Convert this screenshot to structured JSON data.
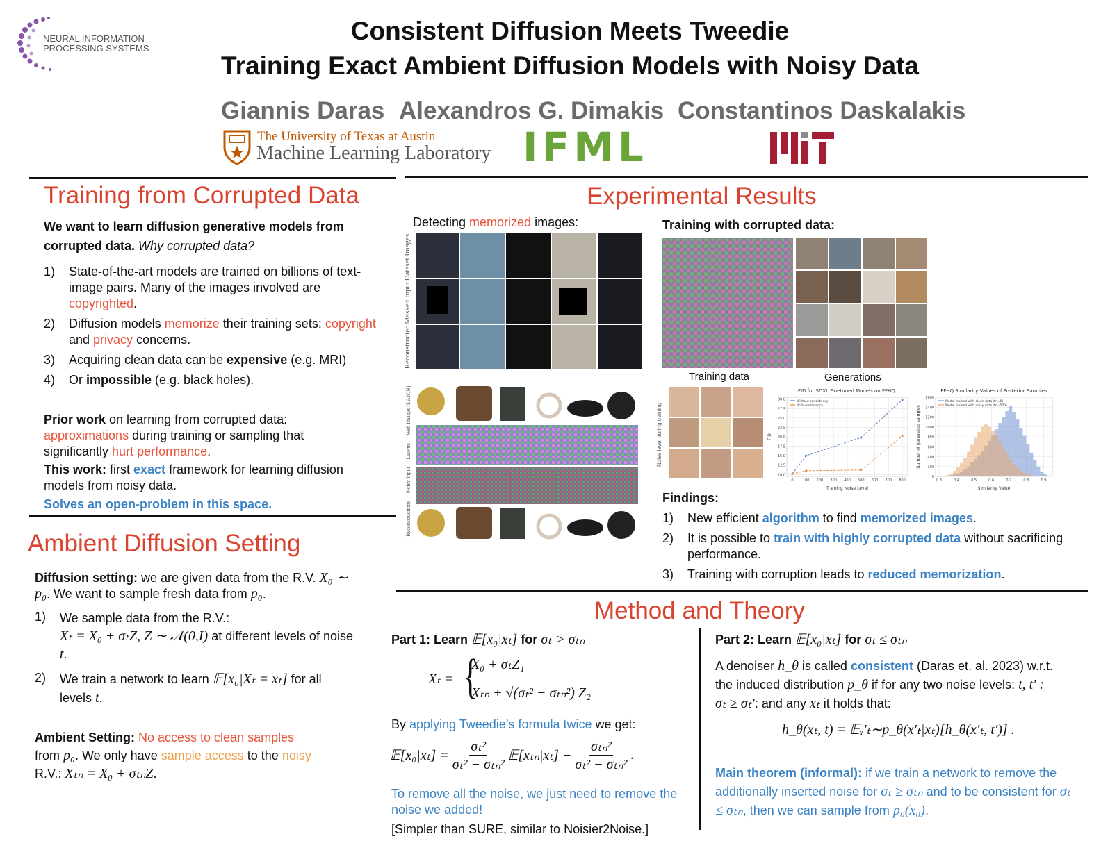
{
  "header": {
    "logo_text": [
      "NEURAL INFORMATION",
      "PROCESSING SYSTEMS"
    ],
    "title_line1": "Consistent Diffusion Meets Tweedie",
    "title_line2": "Training Exact Ambient Diffusion Models with Noisy Data",
    "authors": [
      "Giannis Daras",
      "Alexandros G. Dimakis",
      "Constantinos Daskalakis"
    ],
    "ut_line1": "The University of Texas at Austin",
    "ut_line2": "Machine Learning Laboratory",
    "ifml": "IFML"
  },
  "training": {
    "heading": "Training from Corrupted Data",
    "intro": [
      "We want to learn diffusion generative models from corrupted data.",
      " Why corrupted data?"
    ],
    "items": [
      {
        "num": "1)",
        "text": [
          "State-of-the-art models are trained on billions of text-image pairs. Many of the images involved are ",
          "copyrighted",
          "."
        ]
      },
      {
        "num": "2)",
        "text": [
          "Diffusion models ",
          "memorize",
          " their training sets: ",
          "copyright",
          " and ",
          "privacy",
          " concerns."
        ]
      },
      {
        "num": "3)",
        "text": [
          "Acquiring clean data can be ",
          "expensive",
          " (e.g. MRI)"
        ]
      },
      {
        "num": "4)",
        "text": [
          "Or ",
          "impossible",
          " (e.g. black holes)."
        ]
      }
    ],
    "prior": [
      "Prior work",
      " on learning from corrupted data: ",
      "approximations",
      " during training or sampling that significantly ",
      "hurt performance",
      "."
    ],
    "this_work": [
      "This work:",
      " first ",
      "exact",
      " framework for learning diffusion models from noisy data."
    ],
    "solves": "Solves an open-problem in this space."
  },
  "ambient": {
    "heading": "Ambient Diffusion Setting",
    "setting": [
      "Diffusion setting:",
      " we are given data from the R.V. ",
      "X₀ ∼ p₀",
      ". We want to sample fresh data from ",
      "p₀",
      "."
    ],
    "items": [
      {
        "num": "1)",
        "text": [
          "We sample data from the R.V.:",
          "Xₜ = X₀ + σₜZ, Z ∼ 𝒩(0,I)",
          " at different levels of noise ",
          "t",
          "."
        ]
      },
      {
        "num": "2)",
        "text": [
          "We train a network to learn ",
          "𝔼[x₀|Xₜ = xₜ]",
          " for all levels ",
          "t",
          "."
        ]
      }
    ],
    "ambient_setting": [
      "Ambient Setting:",
      " No access to clean samples",
      " from ",
      "p₀",
      ". We only have ",
      "sample access",
      " to the ",
      "noisy",
      " R.V.: ",
      "Xₜₙ = X₀ + σₜₙZ",
      "."
    ]
  },
  "results": {
    "heading": "Experimental Results",
    "detecting": [
      "Detecting ",
      "memorized",
      " images:"
    ],
    "row_labels": [
      "Reconstructed",
      "Masked Input",
      "Dataset Images"
    ],
    "laion_labels": [
      "Web Images (LAION)",
      "Latents",
      "Noisy Input",
      "Reconstructions"
    ],
    "training_corrupted": "Training with corrupted data:",
    "training_data": "Training data",
    "generations": "Generations",
    "noise_level": "Noise level during training",
    "findings_heading": "Findings:",
    "findings": [
      {
        "num": "1)",
        "text": [
          "New efficient ",
          "algorithm",
          " to find ",
          "memorized images",
          "."
        ]
      },
      {
        "num": "2)",
        "text": [
          "It is possible to ",
          "train with highly corrupted data",
          " without sacrificing performance."
        ]
      },
      {
        "num": "3)",
        "text": [
          "Training with corruption leads to ",
          "reduced memorization",
          "."
        ]
      }
    ]
  },
  "method": {
    "heading": "Method and Theory",
    "part1_heading": [
      "Part 1: Learn ",
      "𝔼[x₀|xₜ]",
      " for ",
      "σₜ > σₜₙ"
    ],
    "cases_lhs": "Xₜ =",
    "case1": "X₀ + σₜZ₁",
    "case2": "Xₜₙ + √(σₜ² − σₜₙ²) Z₂",
    "tweedie": [
      "By ",
      "applying Tweedie’s formula twice",
      " we get:"
    ],
    "eq": {
      "lhs": "𝔼[x₀|xₜ] =",
      "num1": "σₜ²",
      "den1": "σₜ² − σₜₙ²",
      "mid": "𝔼[xₜₙ|xₜ] −",
      "num2": "σₜₙ²",
      "den2": "σₜ² − σₜₙ²",
      "end": "."
    },
    "remove": "To remove all the noise, we just need to remove the noise we added!",
    "simpler": "[Simpler than SURE, similar to Noisier2Noise.]",
    "part2_heading": [
      "Part 2: Learn ",
      "𝔼[x₀|xₜ]",
      " for ",
      "σₜ ≤ σₜₙ"
    ],
    "consistent": [
      "A denoiser ",
      "h_θ",
      " is called ",
      "consistent",
      " (Daras et. al. 2023) w.r.t. the induced distribution ",
      "p_θ",
      " if for any two noise levels: ",
      "t, t′ : σₜ ≥ σₜ′",
      ": and any ",
      "xₜ",
      " it holds that:"
    ],
    "consistency_eq": "h_θ(xₜ, t) = 𝔼ₓ′ₜ∼p_θ(x′ₜ|xₜ)[h_θ(x′ₜ, t′)] .",
    "theorem": [
      "Main theorem (informal):",
      " if we train a network to remove the additionally inserted noise for ",
      "σₜ ≥ σₜₙ",
      " and to be consistent for ",
      "σₜ ≤ σₜₙ",
      ", then we can sample from ",
      "p₀(x₀)",
      "."
    ]
  },
  "chart_data": [
    {
      "type": "line",
      "title": "FID for SDXL Finetuned Models on FFHQ.",
      "x_label": "Training Noise Level",
      "y_label": "FID",
      "x": [
        0,
        100,
        500,
        800
      ],
      "series": [
        {
          "name": "Without consistency",
          "color": "#5b7fbf",
          "values": [
            10.2,
            15.0,
            19.8,
            29.8
          ]
        },
        {
          "name": "With consistency.",
          "color": "#e8833a",
          "values": [
            10.2,
            11.0,
            11.2,
            20.2
          ]
        }
      ],
      "xlim": [
        -40,
        840
      ],
      "ylim": [
        9.5,
        30.5
      ],
      "xticks": [
        0,
        100,
        200,
        300,
        400,
        500,
        600,
        700,
        800
      ],
      "yticks": [
        {
          "value": 10,
          "label": "10.0"
        },
        {
          "value": 12.5,
          "label": "12.5"
        },
        {
          "value": 15,
          "label": "15.0"
        },
        {
          "value": 17.5,
          "label": "17.5"
        },
        {
          "value": 20,
          "label": "20.0"
        },
        {
          "value": 22.5,
          "label": "22.5"
        },
        {
          "value": 25,
          "label": "25.0"
        },
        {
          "value": 27.5,
          "label": "27.5"
        },
        {
          "value": 30,
          "label": "30.0"
        }
      ],
      "grid": true,
      "legend": "upper-left"
    },
    {
      "type": "histogram",
      "title": "FFHQ Similarity Values of Posterior Samples",
      "x_label": "Similarity Value",
      "y_label": "Number of generated samples",
      "bins": [
        0.3,
        0.32,
        0.34,
        0.36,
        0.38,
        0.4,
        0.42,
        0.44,
        0.46,
        0.48,
        0.5,
        0.52,
        0.54,
        0.56,
        0.58,
        0.6,
        0.62,
        0.64,
        0.66,
        0.68,
        0.7,
        0.72,
        0.74,
        0.76,
        0.78,
        0.8,
        0.82,
        0.84,
        0.86,
        0.88,
        0.9,
        0.92
      ],
      "series": [
        {
          "name": "Model trained with clean data (tn=0)",
          "color": "#6f8fcf",
          "values": [
            0,
            0,
            10,
            20,
            40,
            60,
            100,
            150,
            200,
            280,
            350,
            430,
            520,
            620,
            720,
            830,
            950,
            1080,
            1200,
            1320,
            1420,
            1300,
            1150,
            980,
            820,
            650,
            480,
            330,
            200,
            100,
            40
          ]
        },
        {
          "name": "Model trained with noisy data (tn=500)",
          "color": "#eaa870",
          "values": [
            0,
            10,
            30,
            60,
            110,
            180,
            270,
            380,
            500,
            640,
            780,
            900,
            1000,
            1050,
            1000,
            920,
            820,
            700,
            580,
            460,
            350,
            250,
            170,
            110,
            70,
            40,
            20,
            10,
            5,
            0,
            0
          ]
        }
      ],
      "xlim": [
        0.28,
        0.95
      ],
      "ylim": [
        0,
        1600
      ],
      "xticks": [
        0.3,
        0.4,
        0.5,
        0.6,
        0.7,
        0.8,
        0.9
      ],
      "yticks": [
        0,
        200,
        400,
        600,
        800,
        1000,
        1200,
        1400,
        1600
      ],
      "grid": true,
      "legend": "upper-left"
    }
  ]
}
